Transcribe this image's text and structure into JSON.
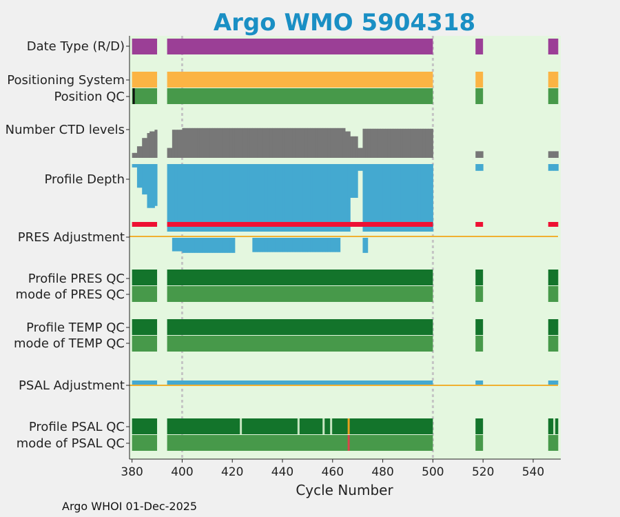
{
  "chart_data": {
    "type": "status-timeline",
    "title": "Argo WMO 5904318",
    "xlabel": "Cycle Number",
    "xlim": [
      379,
      551
    ],
    "xticks": [
      380,
      400,
      420,
      440,
      460,
      480,
      500,
      520,
      540
    ],
    "dashed_cycles": [
      400,
      500
    ],
    "row_labels": [
      "Date Type (R/D)",
      "Positioning System",
      "Position QC",
      "Number CTD levels",
      "Profile Depth",
      "PRES Adjustment",
      "Profile PRES QC",
      "mode of PRES QC",
      "Profile TEMP QC",
      "mode of TEMP QC",
      "PSAL Adjustment",
      "Profile PSAL QC",
      "mode of PSAL QC"
    ],
    "cycle_segments": [
      [
        380,
        390
      ],
      [
        394,
        500
      ],
      [
        517,
        520
      ],
      [
        546,
        550
      ]
    ],
    "colors": {
      "background": "#e4f7df",
      "delayed_mode": "#9b3f96",
      "positioning": "#fbb444",
      "qc_good": "#47994a",
      "qc_profile_A": "#13742b",
      "qc_profile_B": "#c8e6c2",
      "qc_flag_orange": "#e8a020",
      "qc_flag_red": "#d8444a",
      "ctd": "#777777",
      "depth": "#44a9d0",
      "pres_adj_bar": "#ee1133",
      "zero_line": "#f0b030",
      "title": "#1a8fc4"
    },
    "ctd_profile": [
      [
        380,
        0.15
      ],
      [
        382,
        0.35
      ],
      [
        384,
        0.6
      ],
      [
        386,
        0.75
      ],
      [
        387,
        0.8
      ],
      [
        389,
        0.85
      ],
      [
        394,
        0.3
      ],
      [
        396,
        0.85
      ],
      [
        400,
        0.9
      ],
      [
        420,
        0.9
      ],
      [
        440,
        0.9
      ],
      [
        460,
        0.9
      ],
      [
        465,
        0.8
      ],
      [
        467,
        0.65
      ],
      [
        470,
        0.3
      ],
      [
        472,
        0.88
      ],
      [
        480,
        0.88
      ],
      [
        500,
        0.88
      ],
      [
        517,
        0.2
      ],
      [
        520,
        0.2
      ],
      [
        546,
        0.2
      ],
      [
        550,
        0.15
      ]
    ],
    "depth_profile": [
      [
        380,
        0.05
      ],
      [
        382,
        0.35
      ],
      [
        384,
        0.45
      ],
      [
        386,
        0.65
      ],
      [
        388,
        0.65
      ],
      [
        389,
        0.62
      ],
      [
        394,
        1.0
      ],
      [
        400,
        1.0
      ],
      [
        420,
        1.0
      ],
      [
        440,
        1.0
      ],
      [
        460,
        1.0
      ],
      [
        465,
        1.0
      ],
      [
        467,
        0.5
      ],
      [
        470,
        0.1
      ],
      [
        472,
        1.0
      ],
      [
        480,
        1.0
      ],
      [
        500,
        1.0
      ],
      [
        517,
        0.1
      ],
      [
        520,
        0.1
      ],
      [
        546,
        0.1
      ],
      [
        550,
        0.05
      ]
    ],
    "pres_adjustment_below": [
      [
        394,
        0.0
      ],
      [
        396,
        0.85
      ],
      [
        400,
        0.95
      ],
      [
        420,
        0.95
      ],
      [
        421,
        0.0
      ],
      [
        427,
        0.0
      ],
      [
        428,
        0.9
      ],
      [
        440,
        0.9
      ],
      [
        462,
        0.9
      ],
      [
        463,
        0.0
      ],
      [
        472,
        0.95
      ],
      [
        474,
        0.0
      ]
    ],
    "psal_qc_markers": [
      {
        "cycle": 423,
        "flag": "B"
      },
      {
        "cycle": 446,
        "flag": "B"
      },
      {
        "cycle": 456,
        "flag": "B"
      },
      {
        "cycle": 459,
        "flag": "B"
      },
      {
        "cycle": 466,
        "flag": "orange"
      },
      {
        "cycle": 548,
        "flag": "B"
      }
    ],
    "psal_mode_markers": [
      {
        "cycle": 466,
        "flag": "red"
      }
    ],
    "position_qc_marker": {
      "cycle": 380,
      "flag": "dark"
    }
  },
  "footer": "Argo WHOI 01-Dec-2025"
}
